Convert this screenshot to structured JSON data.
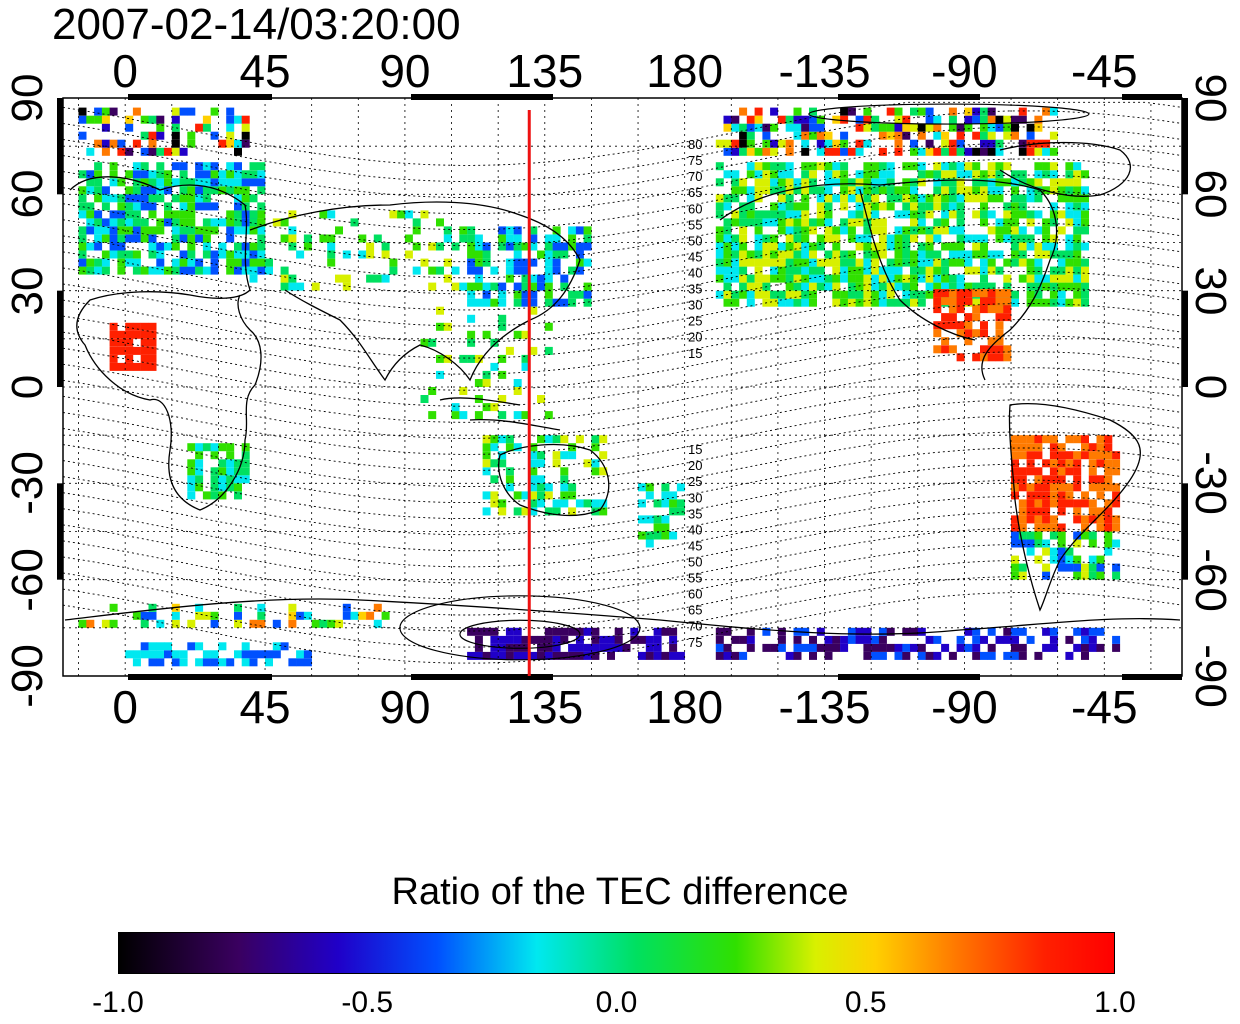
{
  "header": {
    "timestamp": "2007-02-14/03:20:00"
  },
  "map": {
    "lon_ticks_top": [
      "0",
      "45",
      "90",
      "135",
      "180",
      "-135",
      "-90",
      "-45"
    ],
    "lon_ticks_bottom": [
      "0",
      "45",
      "90",
      "135",
      "180",
      "-135",
      "-90",
      "-45"
    ],
    "lat_ticks_left": [
      "90",
      "60",
      "30",
      "0",
      "-30",
      "-60",
      "-90"
    ],
    "lat_ticks_right": [
      "90",
      "60",
      "30",
      "0",
      "-30",
      "-60",
      "-90"
    ],
    "lon_range": [
      -20,
      340
    ],
    "lat_range": [
      -90,
      90
    ],
    "marker_meridian_lon": 130,
    "marker_color": "#ee1111",
    "contour_labels_north": [
      "80",
      "75",
      "70",
      "65",
      "60",
      "55",
      "50",
      "45",
      "40",
      "35",
      "30",
      "25",
      "20",
      "15"
    ],
    "contour_labels_south": [
      "15",
      "20",
      "25",
      "30",
      "35",
      "40",
      "45",
      "50",
      "55",
      "60",
      "65",
      "70",
      "75"
    ]
  },
  "colorbar": {
    "title": "Ratio of the TEC difference",
    "range": [
      -1.0,
      1.0
    ],
    "ticks": [
      "-1.0",
      "-0.5",
      "0.0",
      "0.5",
      "1.0"
    ],
    "colors": [
      "#000000",
      "#3a0060",
      "#2000c8",
      "#0050ff",
      "#00e8f0",
      "#00e060",
      "#30e000",
      "#d8f000",
      "#ffd000",
      "#ff7a00",
      "#ff2000"
    ]
  }
}
